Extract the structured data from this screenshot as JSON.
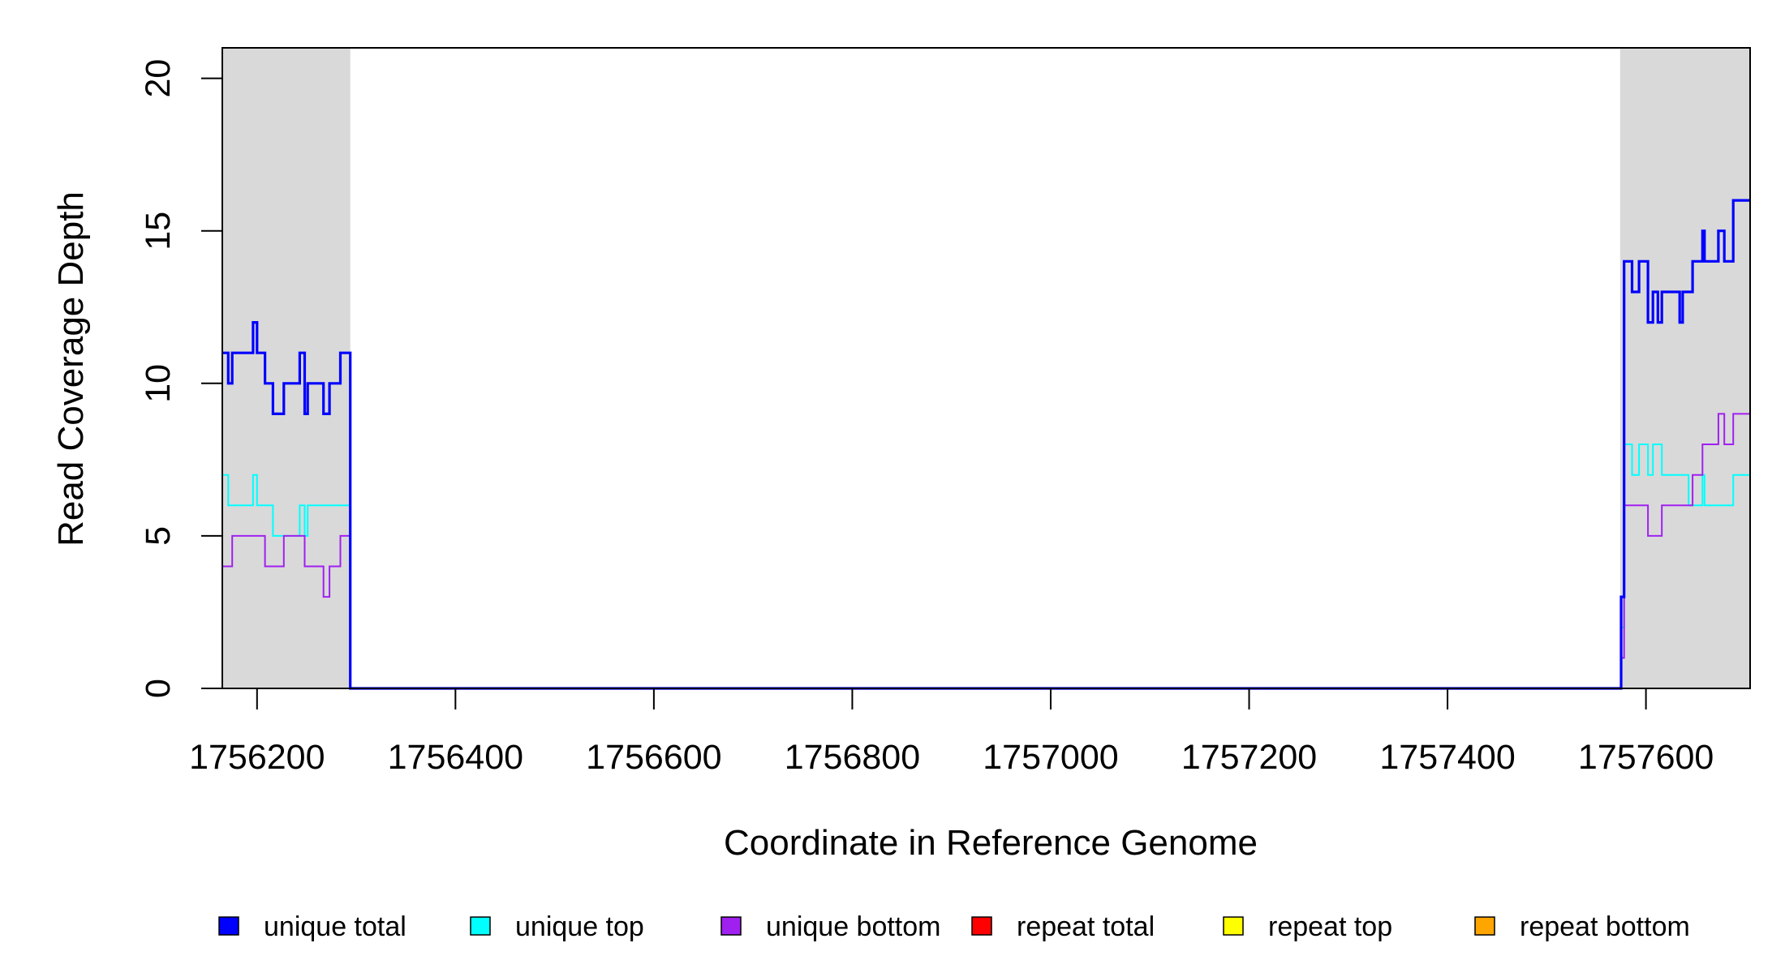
{
  "chart_data": {
    "type": "line",
    "title": "",
    "xlabel": "Coordinate in Reference Genome",
    "ylabel": "Read Coverage Depth",
    "xlim": [
      1756165,
      1757705
    ],
    "ylim": [
      0,
      21
    ],
    "x_ticks": [
      1756200,
      1756400,
      1756600,
      1756800,
      1757000,
      1757200,
      1757400,
      1757600
    ],
    "y_ticks": [
      0,
      5,
      10,
      15,
      20
    ],
    "grid": false,
    "legend_position": "bottom",
    "shaded_regions": [
      [
        1756165,
        1756294
      ],
      [
        1757574,
        1757705
      ]
    ],
    "shade_color": "#d9d9d9",
    "series": [
      {
        "name": "unique total",
        "color": "#0000ff",
        "stroke_width": 3.2,
        "points": [
          [
            1756165,
            11
          ],
          [
            1756171,
            10
          ],
          [
            1756175,
            11
          ],
          [
            1756196,
            12
          ],
          [
            1756200,
            11
          ],
          [
            1756208,
            10
          ],
          [
            1756216,
            9
          ],
          [
            1756227,
            10
          ],
          [
            1756243,
            11
          ],
          [
            1756248,
            9
          ],
          [
            1756251,
            10
          ],
          [
            1756267,
            9
          ],
          [
            1756273,
            10
          ],
          [
            1756284,
            11
          ],
          [
            1756290,
            11
          ],
          [
            1756294,
            0
          ],
          [
            1757574,
            0
          ],
          [
            1757575,
            3
          ],
          [
            1757578,
            14
          ],
          [
            1757586,
            13
          ],
          [
            1757593,
            14
          ],
          [
            1757602,
            12
          ],
          [
            1757607,
            13
          ],
          [
            1757612,
            12
          ],
          [
            1757616,
            13
          ],
          [
            1757630,
            13
          ],
          [
            1757634,
            12
          ],
          [
            1757637,
            13
          ],
          [
            1757647,
            14
          ],
          [
            1757657,
            15
          ],
          [
            1757659,
            14
          ],
          [
            1757673,
            15
          ],
          [
            1757679,
            14
          ],
          [
            1757688,
            16
          ],
          [
            1757705,
            16
          ]
        ]
      },
      {
        "name": "unique top",
        "color": "#00ffff",
        "stroke_width": 2,
        "points": [
          [
            1756165,
            7
          ],
          [
            1756171,
            6
          ],
          [
            1756196,
            7
          ],
          [
            1756200,
            6
          ],
          [
            1756216,
            5
          ],
          [
            1756243,
            6
          ],
          [
            1756248,
            5
          ],
          [
            1756251,
            6
          ],
          [
            1756290,
            6
          ],
          [
            1756294,
            0
          ],
          [
            1757574,
            0
          ],
          [
            1757575,
            2
          ],
          [
            1757578,
            8
          ],
          [
            1757586,
            7
          ],
          [
            1757593,
            8
          ],
          [
            1757602,
            7
          ],
          [
            1757607,
            8
          ],
          [
            1757616,
            7
          ],
          [
            1757643,
            6
          ],
          [
            1757657,
            7
          ],
          [
            1757659,
            6
          ],
          [
            1757688,
            7
          ],
          [
            1757705,
            7
          ]
        ]
      },
      {
        "name": "unique bottom",
        "color": "#a020f0",
        "stroke_width": 2,
        "points": [
          [
            1756165,
            4
          ],
          [
            1756175,
            5
          ],
          [
            1756208,
            4
          ],
          [
            1756227,
            5
          ],
          [
            1756248,
            4
          ],
          [
            1756267,
            3
          ],
          [
            1756273,
            4
          ],
          [
            1756284,
            5
          ],
          [
            1756290,
            5
          ],
          [
            1756294,
            0
          ],
          [
            1757574,
            0
          ],
          [
            1757575,
            1
          ],
          [
            1757578,
            6
          ],
          [
            1757602,
            5
          ],
          [
            1757616,
            6
          ],
          [
            1757647,
            7
          ],
          [
            1757657,
            8
          ],
          [
            1757673,
            9
          ],
          [
            1757679,
            8
          ],
          [
            1757688,
            9
          ],
          [
            1757705,
            9
          ]
        ]
      },
      {
        "name": "repeat total",
        "color": "#ff0000",
        "stroke_width": 2,
        "points": [
          [
            1756165,
            0
          ],
          [
            1757705,
            0
          ]
        ]
      },
      {
        "name": "repeat top",
        "color": "#ffff00",
        "stroke_width": 2,
        "points": [
          [
            1756165,
            0
          ],
          [
            1757705,
            0
          ]
        ]
      },
      {
        "name": "repeat bottom",
        "color": "#ffa500",
        "stroke_width": 2,
        "points": [
          [
            1756165,
            0
          ],
          [
            1757705,
            0
          ]
        ]
      }
    ]
  }
}
